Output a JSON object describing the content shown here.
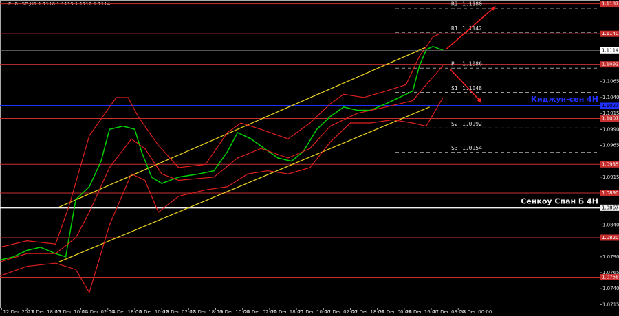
{
  "chart_data": {
    "type": "line",
    "title": "EURUSD,H1  1.1118 1.1119 1.1112 1.1114",
    "xlim": [
      0,
      356
    ],
    "ylim": [
      1.071,
      1.1193
    ],
    "xticks": [
      {
        "value": 1,
        "label": "12 Dec 2023"
      },
      {
        "value": 16,
        "label": "12 Dec 18:00"
      },
      {
        "value": 32,
        "label": "13 Dec 10:00"
      },
      {
        "value": 48,
        "label": "14 Dec 02:00"
      },
      {
        "value": 64,
        "label": "14 Dec 18:00"
      },
      {
        "value": 80,
        "label": "15 Dec 10:00"
      },
      {
        "value": 96,
        "label": "18 Dec 02:00"
      },
      {
        "value": 112,
        "label": "18 Dec 18:00"
      },
      {
        "value": 128,
        "label": "19 Dec 10:00"
      },
      {
        "value": 144,
        "label": "20 Dec 02:00"
      },
      {
        "value": 160,
        "label": "20 Dec 18:00"
      },
      {
        "value": 176,
        "label": "21 Dec 10:00"
      },
      {
        "value": 192,
        "label": "22 Dec 02:00"
      },
      {
        "value": 208,
        "label": "22 Dec 18:00"
      },
      {
        "value": 224,
        "label": "26 Dec 00:00"
      },
      {
        "value": 240,
        "label": "26 Dec 16:00"
      },
      {
        "value": 256,
        "label": "27 Dec 08:00"
      },
      {
        "value": 272,
        "label": "28 Dec 00:00"
      }
    ],
    "yticks": [
      {
        "value": 1.1065,
        "label": "1.1065"
      },
      {
        "value": 1.104,
        "label": "1.1040"
      },
      {
        "value": 1.1015,
        "label": "1.1015"
      },
      {
        "value": 1.099,
        "label": "1.0990"
      },
      {
        "value": 1.0965,
        "label": "1.0965"
      },
      {
        "value": 1.0915,
        "label": "1.0915"
      },
      {
        "value": 1.084,
        "label": "1.0840"
      },
      {
        "value": 1.079,
        "label": "1.0790"
      },
      {
        "value": 1.0765,
        "label": "1.0765"
      },
      {
        "value": 1.074,
        "label": "1.0740"
      },
      {
        "value": 1.0715,
        "label": "1.0715"
      }
    ],
    "current_price": {
      "value": 1.1114,
      "label": "1.1114"
    },
    "series": [
      {
        "color": "#00d000",
        "x": [
          0,
          8,
          16,
          24,
          33,
          39,
          45,
          53,
          60,
          65,
          73,
          80,
          84,
          90,
          96,
          106,
          118,
          127,
          135,
          141,
          149,
          157,
          165,
          173,
          180,
          188,
          196,
          204,
          212,
          220,
          229,
          237,
          245,
          249,
          253,
          257,
          263
        ],
        "values": [
          1.0785,
          1.079,
          1.08,
          1.0805,
          1.0795,
          1.079,
          1.088,
          1.09,
          1.094,
          1.099,
          1.0995,
          1.099,
          1.0955,
          1.0915,
          1.0905,
          1.0915,
          1.092,
          1.0925,
          1.0955,
          1.0985,
          1.0975,
          1.096,
          1.0945,
          1.094,
          1.0955,
          1.099,
          1.101,
          1.1025,
          1.102,
          1.102,
          1.103,
          1.104,
          1.105,
          1.109,
          1.1115,
          1.112,
          1.1114
        ]
      },
      {
        "color": "#e02020",
        "x": [
          0,
          16,
          33,
          41,
          53,
          69,
          76,
          82,
          94,
          106,
          122,
          135,
          143,
          155,
          171,
          184,
          196,
          204,
          216,
          229,
          241,
          249,
          257,
          261
        ],
        "values": [
          1.0805,
          1.0815,
          1.081,
          1.087,
          1.098,
          1.104,
          1.104,
          1.101,
          1.0965,
          1.093,
          1.0935,
          1.0985,
          1.1,
          1.099,
          1.0975,
          1.1,
          1.103,
          1.1045,
          1.104,
          1.105,
          1.106,
          1.1105,
          1.1135,
          1.114
        ]
      },
      {
        "color": "#e02020",
        "x": [
          0,
          16,
          33,
          45,
          53,
          65,
          78,
          86,
          96,
          106,
          127,
          141,
          155,
          171,
          184,
          196,
          212,
          229,
          245,
          253,
          263
        ],
        "values": [
          1.0782,
          1.0795,
          1.0795,
          1.082,
          1.086,
          1.093,
          1.0975,
          1.096,
          1.092,
          1.091,
          1.0915,
          1.0945,
          1.096,
          1.0945,
          1.096,
          1.0995,
          1.1015,
          1.1025,
          1.1035,
          1.106,
          1.109
        ]
      },
      {
        "color": "#e02020",
        "x": [
          0,
          16,
          33,
          45,
          53,
          65,
          78,
          86,
          94,
          106,
          122,
          135,
          147,
          159,
          171,
          184,
          196,
          208,
          220,
          233,
          245,
          253,
          263
        ],
        "values": [
          1.076,
          1.0775,
          1.078,
          1.077,
          1.0734,
          1.084,
          1.092,
          1.091,
          1.086,
          1.0885,
          1.0895,
          1.09,
          1.092,
          1.0925,
          1.092,
          1.093,
          1.097,
          1.1,
          1.1,
          1.1005,
          1.1,
          1.0995,
          1.104
        ]
      }
    ],
    "channel": {
      "color": "#e8d020",
      "lines": [
        {
          "x": [
            35,
            253
          ],
          "values": [
            1.0868,
            1.1119
          ]
        },
        {
          "x": [
            35,
            255
          ],
          "values": [
            1.0782,
            1.1025
          ]
        }
      ]
    },
    "arrows": {
      "color": "#ff2020",
      "lines": [
        {
          "x": [
            265,
            294
          ],
          "values": [
            1.1116,
            1.1183
          ]
        },
        {
          "x": [
            267,
            286
          ],
          "values": [
            1.1085,
            1.1032
          ]
        }
      ]
    },
    "levels": {
      "color": "#c83030",
      "items": [
        {
          "value": 1.1187,
          "label": "1.1187"
        },
        {
          "value": 1.114,
          "label": "1.1140"
        },
        {
          "value": 1.1092,
          "label": "1.1092"
        },
        {
          "value": 1.1007,
          "label": "1.1007"
        },
        {
          "value": 1.0935,
          "label": "1.0935"
        },
        {
          "value": 1.089,
          "label": "1.0890"
        },
        {
          "value": 1.082,
          "label": "1.0820"
        },
        {
          "value": 1.0758,
          "label": "1.0758"
        }
      ]
    },
    "indicator_lines": [
      {
        "value": 1.1027,
        "label": "1.1027",
        "text": "Киджун-сен 4H",
        "color": "#2030ff"
      },
      {
        "value": 1.0867,
        "label": "1.0867",
        "text": "Сенкоу Спан Б 4H",
        "color": "#f0f0f0"
      }
    ],
    "pivots": [
      {
        "name": "R2",
        "value": 1.118,
        "label": "1.1180"
      },
      {
        "name": "R1",
        "value": 1.1142,
        "label": "1.1142"
      },
      {
        "name": "P",
        "value": 1.1086,
        "label": "1.1086"
      },
      {
        "name": "S1",
        "value": 1.1048,
        "label": "1.1048"
      },
      {
        "name": "S2",
        "value": 1.0992,
        "label": "1.0992"
      },
      {
        "name": "S3",
        "value": 1.0954,
        "label": "1.0954"
      }
    ]
  }
}
